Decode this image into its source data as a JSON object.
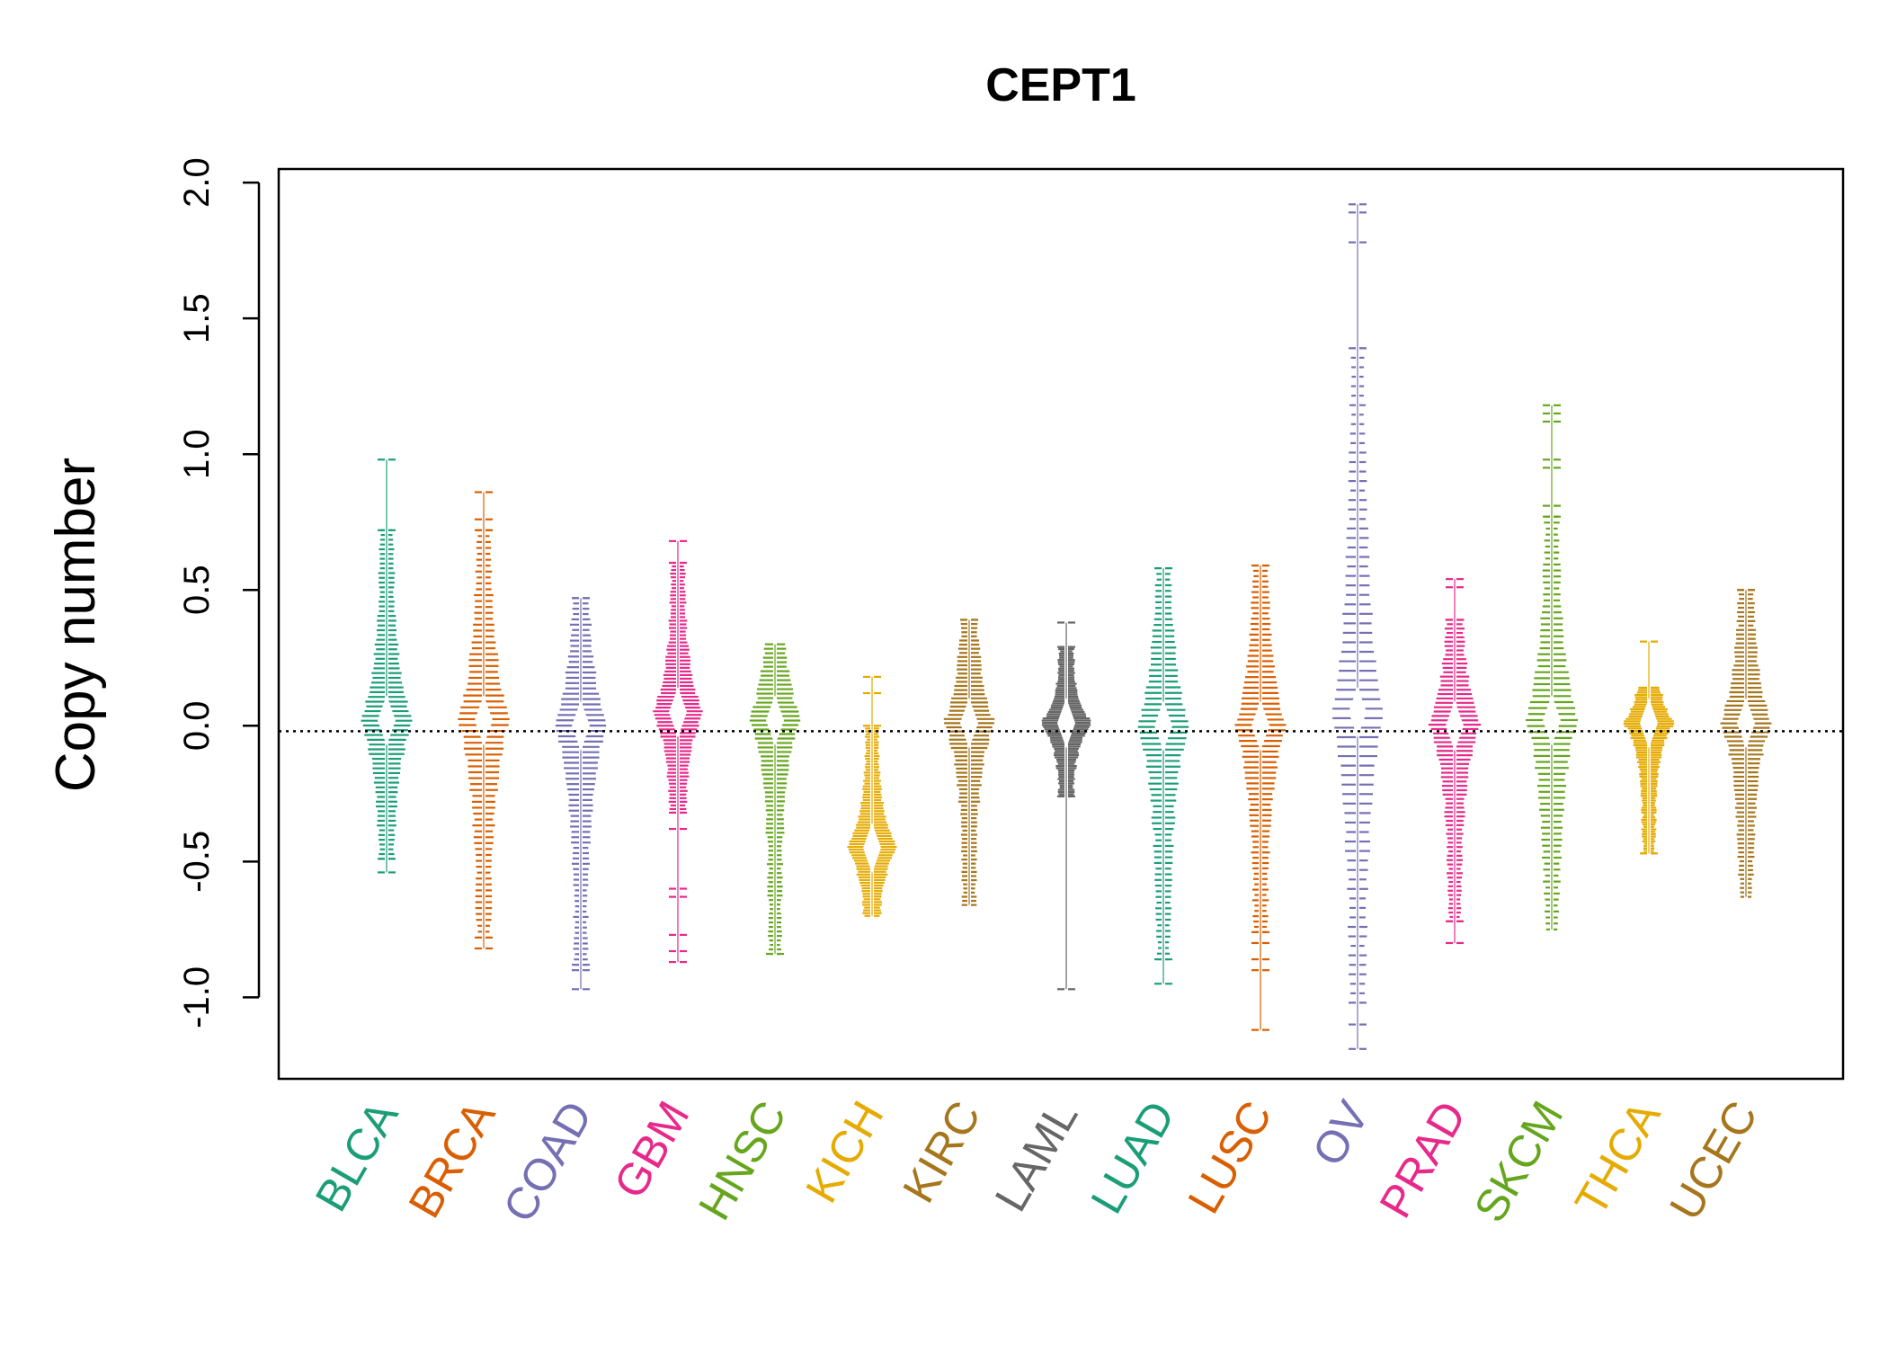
{
  "chart_data": {
    "type": "beeswarm",
    "title": "CEPT1",
    "xlabel": "",
    "ylabel": "Copy number",
    "ylim": [
      -1.3,
      2.05
    ],
    "y_ticks": [
      -1.0,
      -0.5,
      0.0,
      0.5,
      1.0,
      1.5,
      2.0
    ],
    "y_tick_labels": [
      "-1.0",
      "-0.5",
      "0.0",
      "0.5",
      "1.0",
      "1.5",
      "2.0"
    ],
    "reference_line": -0.02,
    "grid": false,
    "legend": "none",
    "categories": [
      "BLCA",
      "BRCA",
      "COAD",
      "GBM",
      "HNSC",
      "KICH",
      "KIRC",
      "LAML",
      "LUAD",
      "LUSC",
      "OV",
      "PRAD",
      "SKCM",
      "THCA",
      "UCEC"
    ],
    "colors": [
      "#1B9E77",
      "#D95F02",
      "#7570B3",
      "#E7298A",
      "#66A61E",
      "#E6AB02",
      "#A6761D",
      "#666666",
      "#1B9E77",
      "#D95F02",
      "#7570B3",
      "#E7298A",
      "#66A61E",
      "#E6AB02",
      "#A6761D"
    ],
    "series": [
      {
        "category": "BLCA",
        "min": -0.54,
        "max": 0.98,
        "center": 0.02,
        "outliers": [
          0.98,
          0.72,
          -0.49,
          -0.54
        ]
      },
      {
        "category": "BRCA",
        "min": -0.82,
        "max": 0.86,
        "center": 0.02,
        "outliers": [
          0.86,
          0.76,
          0.72,
          -0.78,
          -0.82
        ]
      },
      {
        "category": "COAD",
        "min": -0.97,
        "max": 0.47,
        "center": 0.0,
        "outliers": [
          0.47,
          -0.88,
          -0.9,
          -0.97
        ]
      },
      {
        "category": "GBM",
        "min": -0.87,
        "max": 0.68,
        "center": 0.05,
        "outliers": [
          0.68,
          0.6,
          -0.32,
          -0.38,
          -0.6,
          -0.63,
          -0.77,
          -0.83,
          -0.87
        ]
      },
      {
        "category": "HNSC",
        "min": -0.84,
        "max": 0.3,
        "center": 0.02,
        "outliers": [
          -0.84
        ]
      },
      {
        "category": "KICH",
        "min": -0.7,
        "max": 0.18,
        "center": -0.45,
        "outliers": [
          0.18,
          0.12,
          0.0
        ]
      },
      {
        "category": "KIRC",
        "min": -0.66,
        "max": 0.39,
        "center": 0.01,
        "outliers": [
          0.39
        ]
      },
      {
        "category": "LAML",
        "min": -0.97,
        "max": 0.38,
        "center": 0.01,
        "outliers": [
          0.38,
          0.29,
          -0.26,
          -0.97
        ]
      },
      {
        "category": "LUAD",
        "min": -0.95,
        "max": 0.58,
        "center": 0.0,
        "outliers": [
          0.58,
          -0.86,
          -0.95
        ]
      },
      {
        "category": "LUSC",
        "min": -1.12,
        "max": 0.59,
        "center": 0.0,
        "outliers": [
          0.59,
          -0.76,
          -0.8,
          -0.86,
          -0.9,
          -1.12
        ]
      },
      {
        "category": "OV",
        "min": -1.19,
        "max": 1.92,
        "center": 0.05,
        "outliers": [
          1.92,
          1.89,
          1.78,
          1.39,
          -1.02,
          -1.1,
          -1.19
        ]
      },
      {
        "category": "PRAD",
        "min": -0.8,
        "max": 0.54,
        "center": 0.0,
        "outliers": [
          0.54,
          0.51,
          0.39,
          -0.72,
          -0.8
        ]
      },
      {
        "category": "SKCM",
        "min": -0.75,
        "max": 1.18,
        "center": 0.02,
        "outliers": [
          1.18,
          1.15,
          1.12,
          0.98,
          0.95,
          0.81,
          0.77
        ]
      },
      {
        "category": "THCA",
        "min": -0.47,
        "max": 0.31,
        "center": 0.01,
        "outliers": [
          0.31,
          0.14,
          -0.47
        ]
      },
      {
        "category": "UCEC",
        "min": -0.63,
        "max": 0.5,
        "center": 0.01,
        "outliers": [
          0.5
        ]
      }
    ]
  }
}
